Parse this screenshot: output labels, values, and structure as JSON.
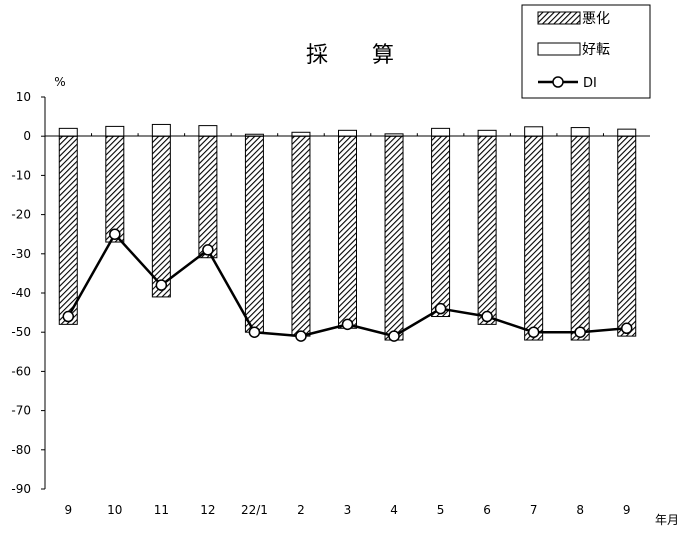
{
  "chart_data": {
    "type": "bar",
    "title": "採　　算",
    "ylabel": "%",
    "xlabel": "年月",
    "ylim": [
      -90,
      10
    ],
    "yticks": [
      10,
      0,
      -10,
      -20,
      -30,
      -40,
      -50,
      -60,
      -70,
      -80,
      -90
    ],
    "categories": [
      "9",
      "10",
      "11",
      "12",
      "22/1",
      "2",
      "3",
      "4",
      "5",
      "6",
      "7",
      "8",
      "9"
    ],
    "series": [
      {
        "name": "悪化",
        "kind": "bar",
        "pattern": "hatch",
        "values": [
          -48,
          -27,
          -41,
          -31,
          -50,
          -51,
          -49,
          -52,
          -46,
          -48,
          -52,
          -52,
          -51
        ]
      },
      {
        "name": "好転",
        "kind": "bar",
        "pattern": "white",
        "values": [
          2,
          2.5,
          3,
          2.7,
          0.5,
          1,
          1.5,
          0.6,
          2,
          1.5,
          2.4,
          2.2,
          1.8
        ]
      },
      {
        "name": "DI",
        "kind": "line",
        "marker": "circle",
        "values": [
          -46,
          -25,
          -38,
          -29,
          -50,
          -51,
          -48,
          -51,
          -44,
          -46,
          -50,
          -50,
          -49
        ]
      }
    ],
    "legend_position": "top-right",
    "grid": false,
    "colors": {
      "line": "#000000",
      "bar_fill": "#ffffff",
      "hatch": "#000000"
    }
  }
}
